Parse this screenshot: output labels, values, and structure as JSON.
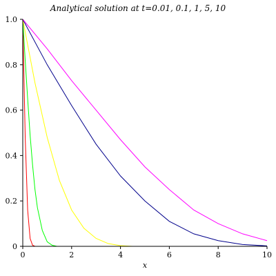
{
  "chart_data": {
    "type": "line",
    "title": "Analytical solution at t=0.01, 0.1, 1, 5, 10",
    "xlabel": "x",
    "ylabel": "",
    "xlim": [
      0,
      10
    ],
    "ylim": [
      0,
      1
    ],
    "xticks": [
      0,
      2,
      4,
      6,
      8,
      10
    ],
    "yticks": [
      0,
      0.2,
      0.4,
      0.6,
      0.8,
      1.0
    ],
    "xtick_labels": [
      "0",
      "2",
      "4",
      "6",
      "8",
      "10"
    ],
    "ytick_labels": [
      "0",
      "0.2",
      "0.4",
      "0.6",
      "0.8",
      "1.0"
    ],
    "grid": false,
    "series": [
      {
        "color": "#ff0000",
        "x": [
          0,
          0.1,
          0.2,
          0.3,
          0.4,
          0.5
        ],
        "y": [
          1.0,
          0.48,
          0.16,
          0.035,
          0.005,
          0.0
        ]
      },
      {
        "color": "#00ff00",
        "x": [
          0,
          0.1,
          0.2,
          0.3,
          0.4,
          0.5,
          0.6,
          0.8,
          1.0,
          1.2,
          1.4
        ],
        "y": [
          1.0,
          0.82,
          0.65,
          0.49,
          0.36,
          0.25,
          0.17,
          0.07,
          0.02,
          0.005,
          0.0
        ]
      },
      {
        "color": "#ffff00",
        "x": [
          0,
          0.25,
          0.5,
          0.75,
          1.0,
          1.5,
          2.0,
          2.5,
          3.0,
          3.5,
          4.0,
          4.5
        ],
        "y": [
          1.0,
          0.86,
          0.72,
          0.6,
          0.48,
          0.29,
          0.16,
          0.08,
          0.035,
          0.012,
          0.003,
          0.0
        ]
      },
      {
        "color": "#00008b",
        "x": [
          0,
          1,
          2,
          3,
          4,
          5,
          6,
          7,
          8,
          9,
          10
        ],
        "y": [
          1.0,
          0.8,
          0.62,
          0.45,
          0.31,
          0.2,
          0.11,
          0.055,
          0.025,
          0.008,
          0.002
        ]
      },
      {
        "color": "#ff00ff",
        "x": [
          0,
          1,
          2,
          3,
          4,
          5,
          6,
          7,
          8,
          9,
          10
        ],
        "y": [
          1.0,
          0.87,
          0.73,
          0.6,
          0.47,
          0.35,
          0.25,
          0.16,
          0.1,
          0.055,
          0.025
        ]
      }
    ]
  }
}
